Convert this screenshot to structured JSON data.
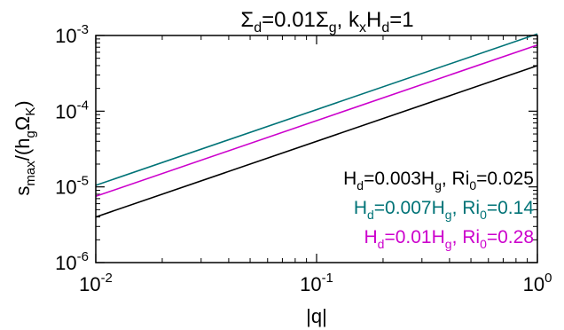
{
  "chart_data": {
    "type": "line",
    "title": {
      "pre": "Σ",
      "pre_sub": "d",
      "mid": "=0.01Σ",
      "mid_sub": "g",
      "post": ", k",
      "post_sub": "x",
      "post2": "H",
      "post2_sub": "d",
      "tail": "=1"
    },
    "xlabel": "|q|",
    "ylabel": {
      "a": "s",
      "a_sub": "max",
      "b": "/(h",
      "b_sub": "g",
      "c": "Ω",
      "c_sub": "K",
      "d": ")"
    },
    "x_scale": "log",
    "y_scale": "log",
    "xlim": [
      0.01,
      1
    ],
    "ylim": [
      1e-06,
      0.001
    ],
    "x_ticks": [
      {
        "value": 0.01,
        "base": "10",
        "exp": "-2"
      },
      {
        "value": 0.1,
        "base": "10",
        "exp": "-1"
      },
      {
        "value": 1,
        "base": "10",
        "exp": "0"
      }
    ],
    "y_ticks": [
      {
        "value": 1e-06,
        "base": "10",
        "exp": "-6"
      },
      {
        "value": 1e-05,
        "base": "10",
        "exp": "-5"
      },
      {
        "value": 0.0001,
        "base": "10",
        "exp": "-4"
      },
      {
        "value": 0.001,
        "base": "10",
        "exp": "-3"
      }
    ],
    "grid": false,
    "legend_position": "bottom-right",
    "series": [
      {
        "color": "#000000",
        "x": [
          0.01,
          1
        ],
        "y": [
          4e-06,
          0.0004
        ],
        "label": {
          "p1": "H",
          "s1": "d",
          "p2": "=0.003H",
          "s2": "g",
          "p3": ", Ri",
          "s3": "0",
          "p4": "=0.025"
        }
      },
      {
        "color": "#007377",
        "x": [
          0.01,
          1
        ],
        "y": [
          1.05e-05,
          0.00105
        ],
        "label": {
          "p1": "H",
          "s1": "d",
          "p2": "=0.007H",
          "s2": "g",
          "p3": ", Ri",
          "s3": "0",
          "p4": "=0.14"
        }
      },
      {
        "color": "#cc00cc",
        "x": [
          0.01,
          1
        ],
        "y": [
          7.5e-06,
          0.00075
        ],
        "label": {
          "p1": "H",
          "s1": "d",
          "p2": "=0.01H",
          "s2": "g",
          "p3": ", Ri",
          "s3": "0",
          "p4": "=0.28"
        }
      }
    ]
  }
}
